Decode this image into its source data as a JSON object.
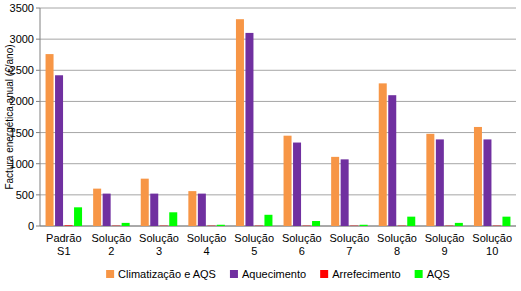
{
  "chart_data": {
    "type": "bar",
    "y_label": "Factura energética anual (€/ano)",
    "categories": [
      "Padrão S1",
      "Solução 2",
      "Solução 3",
      "Solução 4",
      "Solução 5",
      "Solução 6",
      "Solução 7",
      "Solução 8",
      "Solução 9",
      "Solução 10"
    ],
    "series": [
      {
        "name": "Climatização e AQS",
        "color": "#F79646",
        "values": [
          2760,
          600,
          760,
          560,
          3320,
          1450,
          1110,
          2290,
          1480,
          1590
        ]
      },
      {
        "name": "Aquecimento",
        "color": "#7030A0",
        "values": [
          2420,
          520,
          520,
          520,
          3100,
          1340,
          1070,
          2100,
          1390,
          1390
        ]
      },
      {
        "name": "Arrefecimento",
        "color": "#FF0000",
        "values": [
          10,
          5,
          5,
          5,
          5,
          5,
          5,
          5,
          5,
          5
        ]
      },
      {
        "name": "AQS",
        "color": "#00FF00",
        "values": [
          300,
          50,
          220,
          20,
          180,
          80,
          20,
          150,
          50,
          150
        ]
      }
    ],
    "ylim": [
      0,
      3500
    ],
    "yticks": [
      0,
      500,
      1000,
      1500,
      2000,
      2500,
      3000,
      3500
    ],
    "grid": true,
    "legend": "bottom"
  }
}
